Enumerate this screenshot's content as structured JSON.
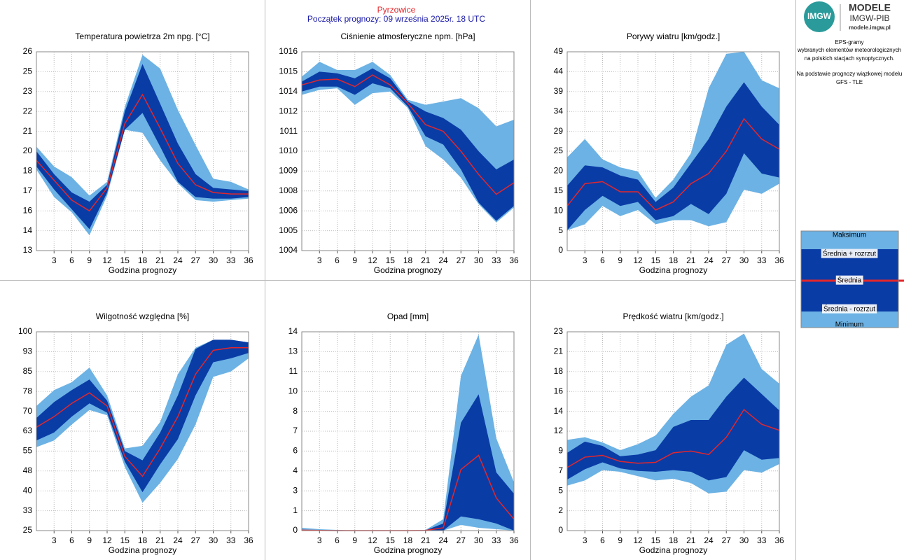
{
  "header": {
    "station": "Pyrzowice",
    "subtitle": "Początek prognozy: 09 września 2025r. 18 UTC"
  },
  "logo": {
    "mark": "IMGW",
    "name": "MODELE",
    "org": "IMGW-PIB",
    "url": "modele.imgw.pl"
  },
  "info": [
    "EPS-gramy",
    "wybranych elementów meteorologicznych",
    "na polskich stacjach  synoptycznych.",
    "Na podstawie prognozy wiązkowej modelu",
    "GFS - TLE"
  ],
  "legend": {
    "items": [
      "Maksimum",
      "Średnia + rozrzut",
      "Średnia",
      "Średnia - rozrzut",
      "Minimum"
    ]
  },
  "chart_data": [
    {
      "type": "band",
      "title": "Temperatura powietrza 2m npg. [°C]",
      "xlabel": "Godzina prognozy",
      "grid": true,
      "x": [
        0,
        3,
        6,
        9,
        12,
        15,
        18,
        21,
        24,
        27,
        30,
        33,
        36
      ],
      "xlim": [
        0,
        36
      ],
      "xticks": [
        3,
        6,
        9,
        12,
        15,
        18,
        21,
        24,
        27,
        30,
        33,
        36
      ],
      "ylim": [
        13,
        26
      ],
      "yticks": [
        13,
        {
          "value": 14.3,
          "label": "14"
        },
        {
          "value": 15.6,
          "label": "16"
        },
        {
          "value": 16.9,
          "label": "17"
        },
        {
          "value": 18.2,
          "label": "18"
        },
        {
          "value": 19.5,
          "label": "20"
        },
        {
          "value": 20.8,
          "label": "21"
        },
        {
          "value": 22.1,
          "label": "22"
        },
        {
          "value": 23.4,
          "label": "23"
        },
        {
          "value": 24.7,
          "label": "25"
        },
        26
      ],
      "series": [
        {
          "color": "#6cb2e4",
          "values": [
            19.8,
            18.5,
            17.8,
            16.6,
            17.5,
            22.4,
            25.8,
            24.9,
            22.2,
            19.9,
            17.7,
            17.5,
            17.0
          ]
        },
        {
          "color": "#0a3ca6",
          "values": [
            19.5,
            18.0,
            16.8,
            16.2,
            17.3,
            22.1,
            25.2,
            22.6,
            20.0,
            18.0,
            17.1,
            17.0,
            16.9
          ]
        },
        {
          "color": "#e3262b",
          "values": [
            18.9,
            17.6,
            16.3,
            15.6,
            17.1,
            21.3,
            23.2,
            21.0,
            18.7,
            17.3,
            16.8,
            16.7,
            16.7
          ]
        },
        {
          "color": "#0a3ca6",
          "values": [
            18.5,
            17.0,
            15.7,
            14.4,
            16.8,
            20.9,
            22.0,
            19.8,
            17.5,
            16.5,
            16.4,
            16.4,
            16.5
          ]
        },
        {
          "color": "#6cb2e4",
          "values": [
            18.3,
            16.5,
            15.5,
            14.0,
            16.6,
            20.9,
            20.7,
            18.9,
            17.4,
            16.3,
            16.2,
            16.3,
            16.4
          ]
        }
      ]
    },
    {
      "type": "band",
      "title": "Ciśnienie atmosferyczne npm. [hPa]",
      "xlabel": "Godzina prognozy",
      "grid": true,
      "x": [
        0,
        3,
        6,
        9,
        12,
        15,
        18,
        21,
        24,
        27,
        30,
        33,
        36
      ],
      "xlim": [
        0,
        36
      ],
      "xticks": [
        3,
        6,
        9,
        12,
        15,
        18,
        21,
        24,
        27,
        30,
        33,
        36
      ],
      "ylim": [
        1004,
        1016
      ],
      "yticks": [
        1004,
        {
          "value": 1005.2,
          "label": "1005"
        },
        {
          "value": 1006.4,
          "label": "1006"
        },
        {
          "value": 1007.6,
          "label": "1008"
        },
        {
          "value": 1008.8,
          "label": "1009"
        },
        1010,
        {
          "value": 1011.2,
          "label": "1011"
        },
        {
          "value": 1012.4,
          "label": "1012"
        },
        {
          "value": 1013.6,
          "label": "1014"
        },
        {
          "value": 1014.8,
          "label": "1015"
        },
        1016
      ],
      "series": [
        {
          "color": "#6cb2e4",
          "values": [
            1014.5,
            1015.4,
            1014.9,
            1014.9,
            1015.4,
            1014.6,
            1013.1,
            1012.8,
            1013.0,
            1013.2,
            1012.6,
            1011.5,
            1011.9
          ]
        },
        {
          "color": "#0a3ca6",
          "values": [
            1014.2,
            1014.8,
            1014.7,
            1014.4,
            1015.0,
            1014.4,
            1013.0,
            1012.4,
            1012.0,
            1011.3,
            1010.0,
            1008.9,
            1009.5
          ]
        },
        {
          "color": "#e3262b",
          "values": [
            1014.0,
            1014.3,
            1014.35,
            1013.9,
            1014.6,
            1014.0,
            1012.9,
            1011.6,
            1011.2,
            1010.0,
            1008.6,
            1007.4,
            1008.1
          ]
        },
        {
          "color": "#0a3ca6",
          "values": [
            1013.6,
            1013.9,
            1013.9,
            1013.4,
            1014.1,
            1013.8,
            1012.7,
            1010.9,
            1010.4,
            1008.9,
            1006.9,
            1005.8,
            1006.7
          ]
        },
        {
          "color": "#6cb2e4",
          "values": [
            1013.4,
            1013.7,
            1013.8,
            1012.8,
            1013.5,
            1013.6,
            1012.6,
            1010.3,
            1009.5,
            1008.4,
            1006.8,
            1005.7,
            1006.6
          ]
        }
      ]
    },
    {
      "type": "band",
      "title": "Porywy wiatru [km/godz.]",
      "xlabel": "Godzina prognozy",
      "grid": true,
      "x": [
        0,
        3,
        6,
        9,
        12,
        15,
        18,
        21,
        24,
        27,
        30,
        33,
        36
      ],
      "xlim": [
        0,
        36
      ],
      "xticks": [
        3,
        6,
        9,
        12,
        15,
        18,
        21,
        24,
        27,
        30,
        33,
        36
      ],
      "ylim": [
        0,
        49
      ],
      "yticks": [
        0,
        {
          "value": 4.9,
          "label": "5"
        },
        {
          "value": 9.8,
          "label": "10"
        },
        {
          "value": 14.7,
          "label": "15"
        },
        {
          "value": 19.6,
          "label": "20"
        },
        {
          "value": 24.5,
          "label": "25"
        },
        {
          "value": 29.4,
          "label": "29"
        },
        {
          "value": 34.3,
          "label": "34"
        },
        {
          "value": 39.2,
          "label": "39"
        },
        {
          "value": 44.1,
          "label": "44"
        },
        49
      ],
      "series": [
        {
          "color": "#6cb2e4",
          "values": [
            23,
            27.5,
            22.5,
            20.5,
            19.5,
            13,
            17.5,
            24,
            40,
            48.5,
            49,
            42,
            40
          ]
        },
        {
          "color": "#0a3ca6",
          "values": [
            16,
            21,
            20.5,
            18.5,
            17.5,
            12,
            15.5,
            21.5,
            27.5,
            35.5,
            41.5,
            35.5,
            31
          ]
        },
        {
          "color": "#e3262b",
          "values": [
            11,
            16.5,
            17,
            14.5,
            14.5,
            10,
            12,
            16.5,
            19,
            24.5,
            32.5,
            27.5,
            25
          ]
        },
        {
          "color": "#0a3ca6",
          "values": [
            5,
            10,
            13.5,
            11,
            12,
            7.5,
            8.5,
            11.5,
            9,
            14,
            24,
            19,
            18
          ]
        },
        {
          "color": "#6cb2e4",
          "values": [
            5,
            6.5,
            11,
            8.5,
            10,
            6.5,
            7.5,
            7.5,
            6,
            7,
            15,
            14,
            16.5
          ]
        }
      ]
    },
    {
      "type": "band",
      "title": "Wilgotność względna [%]",
      "xlabel": "Godzina prognozy",
      "grid": true,
      "x": [
        0,
        3,
        6,
        9,
        12,
        15,
        18,
        21,
        24,
        27,
        30,
        33,
        36
      ],
      "xlim": [
        0,
        36
      ],
      "xticks": [
        3,
        6,
        9,
        12,
        15,
        18,
        21,
        24,
        27,
        30,
        33,
        36
      ],
      "ylim": [
        25,
        100
      ],
      "yticks": [
        25,
        {
          "value": 32.5,
          "label": "33"
        },
        40,
        {
          "value": 47.5,
          "label": "48"
        },
        55,
        {
          "value": 62.5,
          "label": "63"
        },
        70,
        {
          "value": 77.5,
          "label": "78"
        },
        85,
        {
          "value": 92.5,
          "label": "93"
        },
        100
      ],
      "series": [
        {
          "color": "#6cb2e4",
          "values": [
            72,
            78,
            81,
            86.5,
            76,
            56,
            57,
            66,
            84,
            94,
            97,
            97,
            96
          ]
        },
        {
          "color": "#0a3ca6",
          "values": [
            67.5,
            73.5,
            78,
            82,
            74,
            55,
            51.5,
            62,
            76,
            93.5,
            97,
            97,
            96
          ]
        },
        {
          "color": "#e3262b",
          "values": [
            64,
            68,
            73,
            77,
            72,
            53,
            45.5,
            56,
            68,
            84,
            93,
            94,
            94
          ]
        },
        {
          "color": "#0a3ca6",
          "values": [
            59,
            62,
            68,
            73,
            69.5,
            51,
            39.5,
            50,
            59.5,
            76,
            88.5,
            90,
            92
          ]
        },
        {
          "color": "#6cb2e4",
          "values": [
            56.5,
            59,
            65,
            70.5,
            68.5,
            49,
            35.5,
            43,
            52,
            65,
            83,
            85,
            90
          ]
        }
      ]
    },
    {
      "type": "band",
      "title": "Opad [mm]",
      "xlabel": "Godzina prognozy",
      "grid": true,
      "x": [
        0,
        3,
        6,
        9,
        12,
        15,
        18,
        21,
        24,
        27,
        30,
        33,
        36
      ],
      "xlim": [
        0,
        36
      ],
      "xticks": [
        3,
        6,
        9,
        12,
        15,
        18,
        21,
        24,
        27,
        30,
        33,
        36
      ],
      "ylim": [
        0,
        14
      ],
      "yticks": [
        0,
        {
          "value": 1.4,
          "label": "1"
        },
        {
          "value": 2.8,
          "label": "3"
        },
        {
          "value": 4.2,
          "label": "4"
        },
        {
          "value": 5.6,
          "label": "6"
        },
        7,
        {
          "value": 8.4,
          "label": "8"
        },
        {
          "value": 9.8,
          "label": "10"
        },
        {
          "value": 11.2,
          "label": "11"
        },
        {
          "value": 12.6,
          "label": "13"
        },
        14
      ],
      "series": [
        {
          "color": "#6cb2e4",
          "values": [
            0.2,
            0.1,
            0.05,
            0,
            0,
            0,
            0,
            0.05,
            0.8,
            10.9,
            13.8,
            6.5,
            3.4
          ]
        },
        {
          "color": "#0a3ca6",
          "values": [
            0.05,
            0.02,
            0,
            0,
            0,
            0,
            0,
            0.02,
            0.5,
            7.6,
            9.6,
            4.1,
            2.6
          ]
        },
        {
          "color": "#e3262b",
          "values": [
            0.03,
            0.01,
            0,
            0,
            0,
            0,
            0,
            0.01,
            0.2,
            4.3,
            5.3,
            2.3,
            0.8
          ]
        },
        {
          "color": "#0a3ca6",
          "values": [
            0,
            0,
            0,
            0,
            0,
            0,
            0,
            0,
            0,
            1.0,
            0.8,
            0.5,
            0
          ]
        },
        {
          "color": "#6cb2e4",
          "values": [
            0,
            0,
            0,
            0,
            0,
            0,
            0,
            0,
            0,
            0.4,
            0.2,
            0.1,
            0
          ]
        }
      ]
    },
    {
      "type": "band",
      "title": "Prędkość wiatru [km/godz.]",
      "xlabel": "Godzina prognozy",
      "grid": true,
      "x": [
        0,
        3,
        6,
        9,
        12,
        15,
        18,
        21,
        24,
        27,
        30,
        33,
        36
      ],
      "xlim": [
        0,
        36
      ],
      "xticks": [
        3,
        6,
        9,
        12,
        15,
        18,
        21,
        24,
        27,
        30,
        33,
        36
      ],
      "ylim": [
        0,
        23
      ],
      "yticks": [
        0,
        {
          "value": 2.3,
          "label": "2"
        },
        {
          "value": 4.6,
          "label": "5"
        },
        {
          "value": 6.9,
          "label": "7"
        },
        {
          "value": 9.2,
          "label": "9"
        },
        {
          "value": 11.5,
          "label": "12"
        },
        {
          "value": 13.8,
          "label": "14"
        },
        {
          "value": 16.1,
          "label": "16"
        },
        {
          "value": 18.4,
          "label": "18"
        },
        {
          "value": 20.7,
          "label": "21"
        },
        23
      ],
      "series": [
        {
          "color": "#6cb2e4",
          "values": [
            10.5,
            10.8,
            10.2,
            9.3,
            10.0,
            11.0,
            13.5,
            15.5,
            16.8,
            21.5,
            22.8,
            18.7,
            17.0
          ]
        },
        {
          "color": "#0a3ca6",
          "values": [
            9.0,
            10.3,
            9.8,
            8.6,
            8.8,
            9.3,
            12.0,
            12.8,
            12.8,
            15.5,
            17.7,
            15.8,
            13.9
          ]
        },
        {
          "color": "#e3262b",
          "values": [
            7.3,
            8.5,
            8.7,
            8.0,
            7.8,
            7.9,
            9.0,
            9.2,
            8.8,
            10.8,
            14.0,
            12.3,
            11.6
          ]
        },
        {
          "color": "#0a3ca6",
          "values": [
            5.9,
            7.1,
            7.9,
            7.2,
            6.9,
            6.8,
            7.0,
            6.8,
            5.8,
            6.2,
            9.3,
            8.2,
            8.4
          ]
        },
        {
          "color": "#6cb2e4",
          "values": [
            5.2,
            5.8,
            7.0,
            6.8,
            6.3,
            5.8,
            6.0,
            5.5,
            4.3,
            4.5,
            7.0,
            6.7,
            7.7
          ]
        }
      ]
    }
  ]
}
